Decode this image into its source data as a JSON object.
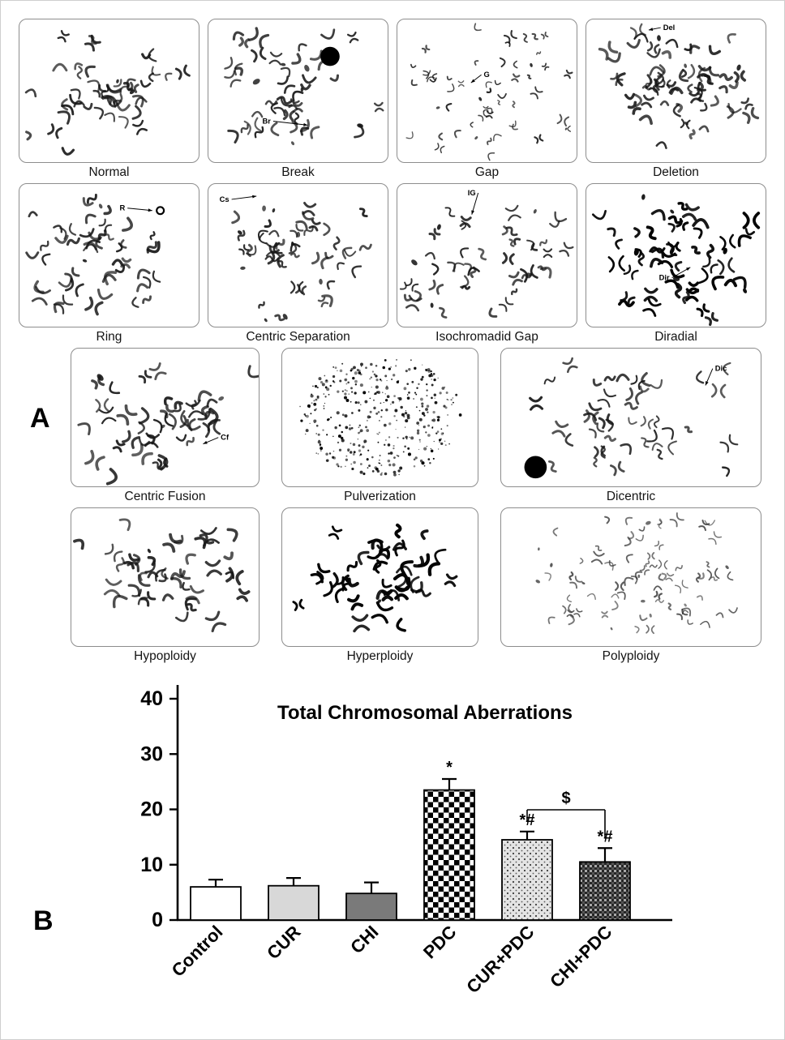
{
  "figure": {
    "panel_a_label": "A",
    "panel_b_label": "B",
    "micrographs": [
      {
        "label": "Normal",
        "annotation": ""
      },
      {
        "label": "Break",
        "annotation": "Br"
      },
      {
        "label": "Gap",
        "annotation": "G"
      },
      {
        "label": "Deletion",
        "annotation": "Del"
      },
      {
        "label": "Ring",
        "annotation": "R"
      },
      {
        "label": "Centric Separation",
        "annotation": "Cs"
      },
      {
        "label": "Isochromadid Gap",
        "annotation": "IG"
      },
      {
        "label": "Diradial",
        "annotation": "Dir"
      },
      {
        "label": "Centric Fusion",
        "annotation": "Cf"
      },
      {
        "label": "Pulverization",
        "annotation": ""
      },
      {
        "label": "Dicentric",
        "annotation": "Dic"
      },
      {
        "label": "Hypoploidy",
        "annotation": ""
      },
      {
        "label": "Hyperploidy",
        "annotation": ""
      },
      {
        "label": "Polyploidy",
        "annotation": ""
      }
    ]
  },
  "chart_data": {
    "type": "bar",
    "title": "Total Chromosomal Aberrations",
    "categories": [
      "Control",
      "CUR",
      "CHI",
      "PDC",
      "CUR+PDC",
      "CHI+PDC"
    ],
    "values": [
      6,
      6.2,
      4.8,
      23.5,
      14.5,
      10.5
    ],
    "errors": [
      1.3,
      1.4,
      2,
      2,
      1.5,
      2.5
    ],
    "significance": [
      "",
      "",
      "",
      "*",
      "*#",
      "*#"
    ],
    "comparison": {
      "label": "$",
      "from": "CUR+PDC",
      "to": "CHI+PDC"
    },
    "xlabel": "",
    "ylabel": "",
    "ylim": [
      0,
      40
    ],
    "yticks": [
      0,
      10,
      20,
      30,
      40
    ],
    "grid": false,
    "legend": "none",
    "bar_styles": [
      "white",
      "light-gray",
      "dark-gray",
      "checkerboard",
      "stipple",
      "fine-check"
    ],
    "colors": {
      "light_gray": "#d8d8d8",
      "dark_gray": "#7a7a7a",
      "axis": "#000000"
    }
  }
}
